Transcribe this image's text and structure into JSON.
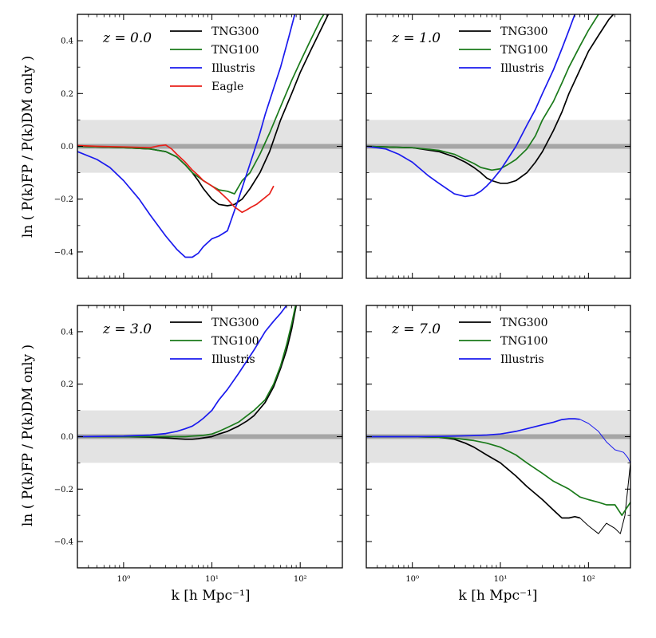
{
  "figure": {
    "ylabel_text": "ln ( P(k)FP / P(k)DM only )",
    "xlabel_text": "k [h Mpc⁻¹]"
  },
  "colors": {
    "TNG300": "#000000",
    "TNG100": "#1a7a1a",
    "Illustris": "#1a1aee",
    "Eagle": "#e8201a",
    "band": "#e3e3e3",
    "zero_line": "#a6a6a6"
  },
  "chart_data": [
    {
      "type": "line",
      "title": "z = 0.0",
      "xscale": "log",
      "xlim": [
        0.3,
        300
      ],
      "ylim": [
        -0.5,
        0.5
      ],
      "band": [
        -0.1,
        0.1
      ],
      "xticks": [
        1,
        10,
        100
      ],
      "xtick_labels": [
        "10⁰",
        "10¹",
        "10²"
      ],
      "yticks": [
        -0.4,
        -0.2,
        0.0,
        0.2,
        0.4
      ],
      "ytick_labels": [
        "−0.4",
        "−0.2",
        "0.0",
        "0.2",
        "0.4"
      ],
      "legend": [
        "TNG300",
        "TNG100",
        "Illustris",
        "Eagle"
      ],
      "series": [
        {
          "name": "TNG300",
          "x": [
            0.3,
            1,
            2,
            3,
            4,
            5,
            6,
            7,
            8,
            10,
            12,
            15,
            18,
            22,
            27,
            35,
            45,
            60,
            80,
            100,
            130,
            170,
            230
          ],
          "y": [
            0.0,
            -0.005,
            -0.01,
            -0.02,
            -0.04,
            -0.07,
            -0.1,
            -0.13,
            -0.16,
            -0.2,
            -0.22,
            -0.225,
            -0.22,
            -0.2,
            -0.16,
            -0.1,
            -0.02,
            0.1,
            0.2,
            0.28,
            0.36,
            0.44,
            0.53
          ]
        },
        {
          "name": "TNG100",
          "x": [
            0.3,
            1,
            2,
            3,
            4,
            5,
            6,
            8,
            10,
            12,
            15,
            18,
            22,
            27,
            35,
            45,
            60,
            80,
            100,
            130,
            170,
            230
          ],
          "y": [
            0.0,
            -0.005,
            -0.01,
            -0.02,
            -0.04,
            -0.07,
            -0.1,
            -0.13,
            -0.15,
            -0.165,
            -0.17,
            -0.18,
            -0.13,
            -0.1,
            -0.03,
            0.05,
            0.15,
            0.25,
            0.32,
            0.4,
            0.48,
            0.55
          ]
        },
        {
          "name": "Illustris",
          "x": [
            0.3,
            0.5,
            0.7,
            1,
            1.5,
            2,
            3,
            4,
            5,
            6,
            7,
            8,
            10,
            12,
            15,
            20,
            25,
            30,
            35,
            40,
            50,
            60,
            75,
            90
          ],
          "y": [
            -0.02,
            -0.05,
            -0.08,
            -0.13,
            -0.2,
            -0.26,
            -0.34,
            -0.39,
            -0.42,
            -0.42,
            -0.405,
            -0.38,
            -0.35,
            -0.34,
            -0.32,
            -0.2,
            -0.1,
            -0.02,
            0.05,
            0.12,
            0.22,
            0.3,
            0.42,
            0.52
          ]
        },
        {
          "name": "Eagle",
          "x": [
            0.3,
            0.5,
            1,
            2,
            2.5,
            3,
            3.5,
            4,
            5,
            6,
            7,
            8,
            10,
            12,
            15,
            18,
            20,
            22,
            25,
            28,
            32,
            38,
            45,
            50
          ],
          "y": [
            0.003,
            0.0,
            -0.002,
            -0.005,
            0.002,
            0.005,
            -0.01,
            -0.03,
            -0.06,
            -0.09,
            -0.11,
            -0.13,
            -0.15,
            -0.17,
            -0.2,
            -0.23,
            -0.24,
            -0.25,
            -0.24,
            -0.23,
            -0.22,
            -0.2,
            -0.18,
            -0.15
          ]
        }
      ]
    },
    {
      "type": "line",
      "title": "z = 1.0",
      "xscale": "log",
      "xlim": [
        0.3,
        300
      ],
      "ylim": [
        -0.5,
        0.5
      ],
      "band": [
        -0.1,
        0.1
      ],
      "xticks": [
        1,
        10,
        100
      ],
      "xtick_labels": [
        "10⁰",
        "10¹",
        "10²"
      ],
      "yticks": [
        -0.4,
        -0.2,
        0.0,
        0.2,
        0.4
      ],
      "ytick_labels": [
        "−0.4",
        "−0.2",
        "0.0",
        "0.2",
        "0.4"
      ],
      "legend": [
        "TNG300",
        "TNG100",
        "Illustris"
      ],
      "series": [
        {
          "name": "TNG300",
          "x": [
            0.3,
            1,
            2,
            3,
            4,
            5,
            6,
            7,
            8,
            10,
            12,
            15,
            20,
            25,
            30,
            40,
            50,
            60,
            80,
            100,
            130,
            170,
            230
          ],
          "y": [
            0.0,
            -0.005,
            -0.02,
            -0.04,
            -0.06,
            -0.08,
            -0.1,
            -0.12,
            -0.13,
            -0.14,
            -0.14,
            -0.13,
            -0.1,
            -0.06,
            -0.02,
            0.06,
            0.13,
            0.2,
            0.29,
            0.36,
            0.42,
            0.48,
            0.53
          ]
        },
        {
          "name": "TNG100",
          "x": [
            0.3,
            1,
            2,
            3,
            4,
            5,
            6,
            8,
            10,
            12,
            15,
            20,
            25,
            30,
            40,
            50,
            60,
            80,
            100,
            130,
            170
          ],
          "y": [
            0.0,
            -0.005,
            -0.015,
            -0.03,
            -0.05,
            -0.065,
            -0.08,
            -0.09,
            -0.085,
            -0.07,
            -0.05,
            -0.01,
            0.04,
            0.1,
            0.17,
            0.24,
            0.3,
            0.38,
            0.44,
            0.5,
            0.56
          ]
        },
        {
          "name": "Illustris",
          "x": [
            0.3,
            0.5,
            0.7,
            1,
            1.5,
            2,
            3,
            4,
            5,
            6,
            7,
            8,
            10,
            12,
            15,
            20,
            25,
            30,
            40,
            50,
            60,
            70
          ],
          "y": [
            0.0,
            -0.01,
            -0.03,
            -0.06,
            -0.11,
            -0.14,
            -0.18,
            -0.19,
            -0.185,
            -0.17,
            -0.15,
            -0.13,
            -0.09,
            -0.05,
            0.0,
            0.08,
            0.14,
            0.2,
            0.29,
            0.37,
            0.44,
            0.5
          ]
        }
      ]
    },
    {
      "type": "line",
      "title": "z = 3.0",
      "xscale": "log",
      "xlim": [
        0.3,
        300
      ],
      "ylim": [
        -0.5,
        0.5
      ],
      "band": [
        -0.1,
        0.1
      ],
      "xticks": [
        1,
        10,
        100
      ],
      "xtick_labels": [
        "10⁰",
        "10¹",
        "10²"
      ],
      "yticks": [
        -0.4,
        -0.2,
        0.0,
        0.2,
        0.4
      ],
      "ytick_labels": [
        "−0.4",
        "−0.2",
        "0.0",
        "0.2",
        "0.4"
      ],
      "legend": [
        "TNG300",
        "TNG100",
        "Illustris"
      ],
      "series": [
        {
          "name": "TNG300",
          "x": [
            0.3,
            1,
            2,
            3,
            4,
            5,
            6,
            7,
            8,
            10,
            12,
            15,
            20,
            25,
            30,
            40,
            50,
            60,
            70,
            80,
            90
          ],
          "y": [
            0.0,
            0.0,
            -0.002,
            -0.005,
            -0.008,
            -0.01,
            -0.01,
            -0.008,
            -0.005,
            0.0,
            0.01,
            0.02,
            0.04,
            0.06,
            0.08,
            0.13,
            0.19,
            0.26,
            0.33,
            0.41,
            0.5
          ]
        },
        {
          "name": "TNG100",
          "x": [
            0.3,
            1,
            2,
            3,
            4,
            5,
            6,
            8,
            10,
            12,
            15,
            20,
            25,
            30,
            40,
            50,
            60,
            70,
            80,
            90
          ],
          "y": [
            0.0,
            0.0,
            0.0,
            0.0,
            0.0,
            0.0,
            0.002,
            0.005,
            0.01,
            0.02,
            0.035,
            0.055,
            0.08,
            0.1,
            0.14,
            0.2,
            0.27,
            0.35,
            0.43,
            0.51
          ]
        },
        {
          "name": "Illustris",
          "x": [
            0.3,
            1,
            2,
            3,
            4,
            5,
            6,
            7,
            8,
            10,
            12,
            15,
            20,
            25,
            30,
            40,
            50,
            60,
            70
          ],
          "y": [
            0.0,
            0.002,
            0.006,
            0.012,
            0.02,
            0.03,
            0.04,
            0.055,
            0.07,
            0.1,
            0.14,
            0.18,
            0.24,
            0.29,
            0.33,
            0.4,
            0.44,
            0.47,
            0.5
          ]
        }
      ]
    },
    {
      "type": "line",
      "title": "z = 7.0",
      "xscale": "log",
      "xlim": [
        0.3,
        300
      ],
      "ylim": [
        -0.5,
        0.5
      ],
      "band": [
        -0.1,
        0.1
      ],
      "xticks": [
        1,
        10,
        100
      ],
      "xtick_labels": [
        "10⁰",
        "10¹",
        "10²"
      ],
      "yticks": [
        -0.4,
        -0.2,
        0.0,
        0.2,
        0.4
      ],
      "ytick_labels": [
        "−0.4",
        "−0.2",
        "0.0",
        "0.2",
        "0.4"
      ],
      "legend": [
        "TNG300",
        "TNG100",
        "Illustris"
      ],
      "series": [
        {
          "name": "TNG300",
          "x": [
            0.3,
            1,
            2,
            3,
            4,
            5,
            7,
            10,
            15,
            20,
            30,
            40,
            50,
            60,
            70,
            80
          ],
          "y": [
            0.0,
            0.0,
            -0.002,
            -0.01,
            -0.025,
            -0.04,
            -0.07,
            -0.1,
            -0.15,
            -0.19,
            -0.24,
            -0.28,
            -0.31,
            -0.31,
            -0.305,
            -0.31
          ]
        },
        {
          "name": "TNG300",
          "x": [
            80,
            100,
            130,
            160,
            200,
            230,
            260,
            300
          ],
          "y": [
            -0.31,
            -0.34,
            -0.37,
            -0.33,
            -0.35,
            -0.37,
            -0.3,
            -0.1
          ]
        },
        {
          "name": "TNG100",
          "x": [
            0.3,
            1,
            2,
            3,
            5,
            7,
            10,
            15,
            20,
            30,
            40,
            60,
            80,
            100,
            130,
            160,
            200,
            240,
            300
          ],
          "y": [
            0.0,
            0.0,
            -0.002,
            -0.006,
            -0.015,
            -0.025,
            -0.04,
            -0.07,
            -0.1,
            -0.14,
            -0.17,
            -0.2,
            -0.23,
            -0.24,
            -0.25,
            -0.26,
            -0.26,
            -0.3,
            -0.25
          ]
        },
        {
          "name": "Illustris",
          "x": [
            0.3,
            1,
            2,
            3,
            5,
            7,
            10,
            15,
            20,
            30,
            40,
            50,
            60,
            70,
            80
          ],
          "y": [
            0.0,
            0.0,
            0.001,
            0.002,
            0.004,
            0.006,
            0.01,
            0.02,
            0.03,
            0.045,
            0.055,
            0.065,
            0.068,
            0.068,
            0.066
          ]
        },
        {
          "name": "Illustris",
          "x": [
            80,
            100,
            130,
            160,
            200,
            250,
            280,
            300
          ],
          "y": [
            0.066,
            0.05,
            0.02,
            -0.02,
            -0.05,
            -0.06,
            -0.08,
            -0.1
          ]
        }
      ]
    }
  ]
}
